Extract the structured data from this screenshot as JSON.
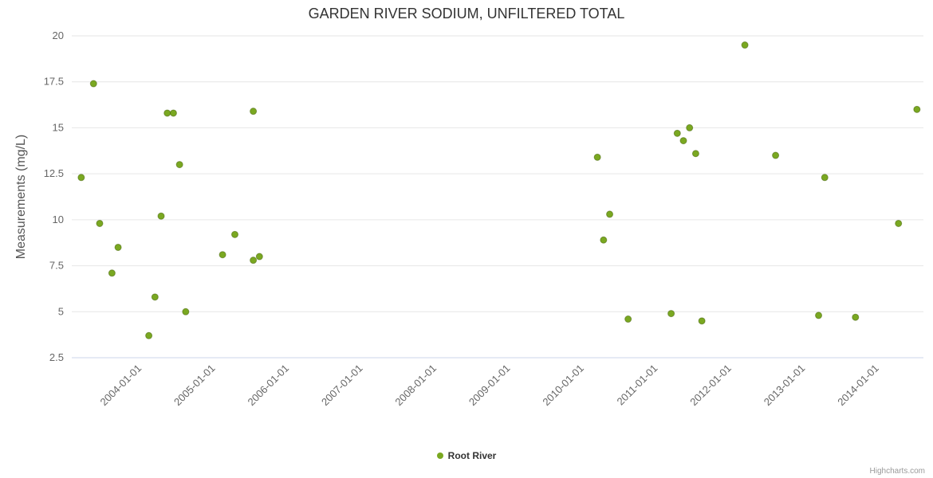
{
  "chart_data": {
    "type": "scatter",
    "title": "GARDEN RIVER SODIUM, UNFILTERED TOTAL",
    "xlabel": "",
    "ylabel": "Measurements (mg/L)",
    "x_ticks": [
      "2004-01-01",
      "2005-01-01",
      "2006-01-01",
      "2007-01-01",
      "2008-01-01",
      "2009-01-01",
      "2010-01-01",
      "2011-01-01",
      "2012-01-01",
      "2013-01-01",
      "2014-01-01"
    ],
    "y_ticks": [
      2.5,
      5,
      7.5,
      10,
      12.5,
      15,
      17.5,
      20
    ],
    "x_range": [
      2003.08,
      2014.63
    ],
    "y_range": [
      2.5,
      20
    ],
    "grid": "horizontal",
    "legend_position": "bottom-center",
    "credits": "Highcharts.com",
    "colors": {
      "point": "#7aa821",
      "gridline": "#e6e6e6",
      "axis_line": "#ccd6eb",
      "tick_label": "#666666"
    },
    "series": [
      {
        "name": "Root River",
        "color": "#7aa821",
        "points": [
          {
            "date": "2003-03",
            "value": 12.3
          },
          {
            "date": "2003-05",
            "value": 17.4
          },
          {
            "date": "2003-06",
            "value": 9.8
          },
          {
            "date": "2003-08",
            "value": 7.1
          },
          {
            "date": "2003-09",
            "value": 8.5
          },
          {
            "date": "2004-02",
            "value": 3.7
          },
          {
            "date": "2004-03",
            "value": 5.8
          },
          {
            "date": "2004-04",
            "value": 10.2
          },
          {
            "date": "2004-05",
            "value": 15.8
          },
          {
            "date": "2004-06",
            "value": 15.8
          },
          {
            "date": "2004-07",
            "value": 13.0
          },
          {
            "date": "2004-08",
            "value": 5.0
          },
          {
            "date": "2005-02",
            "value": 8.1
          },
          {
            "date": "2005-04",
            "value": 9.2
          },
          {
            "date": "2005-07",
            "value": 15.9
          },
          {
            "date": "2005-07",
            "value": 7.8
          },
          {
            "date": "2005-08",
            "value": 8.0
          },
          {
            "date": "2010-03",
            "value": 13.4
          },
          {
            "date": "2010-04",
            "value": 8.9
          },
          {
            "date": "2010-05",
            "value": 10.3
          },
          {
            "date": "2010-08",
            "value": 4.6
          },
          {
            "date": "2011-03",
            "value": 4.9
          },
          {
            "date": "2011-04",
            "value": 14.7
          },
          {
            "date": "2011-05",
            "value": 14.3
          },
          {
            "date": "2011-06",
            "value": 15.0
          },
          {
            "date": "2011-07",
            "value": 13.6
          },
          {
            "date": "2011-08",
            "value": 4.5
          },
          {
            "date": "2012-03",
            "value": 19.5
          },
          {
            "date": "2012-08",
            "value": 13.5
          },
          {
            "date": "2013-03",
            "value": 4.8
          },
          {
            "date": "2013-04",
            "value": 12.3
          },
          {
            "date": "2013-09",
            "value": 4.7
          },
          {
            "date": "2014-04",
            "value": 9.8
          },
          {
            "date": "2014-07",
            "value": 16.0
          }
        ]
      }
    ]
  }
}
